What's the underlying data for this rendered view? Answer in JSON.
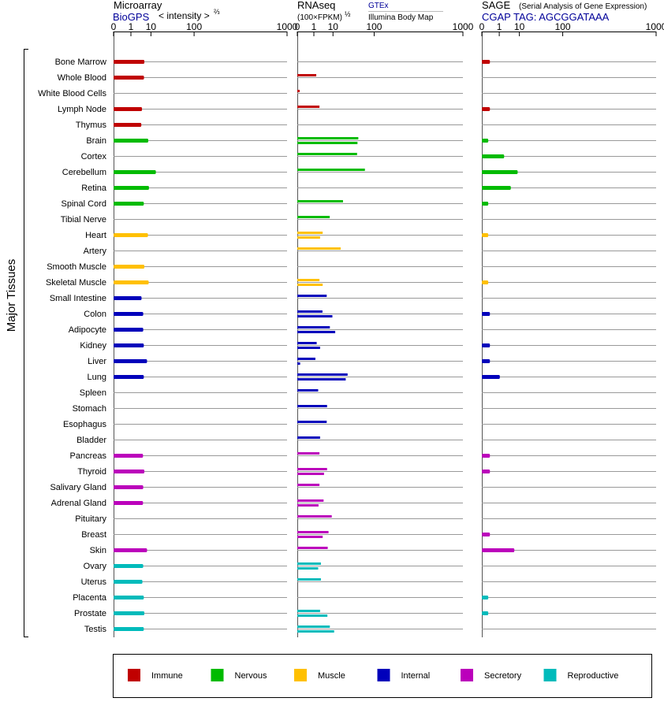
{
  "colors": {
    "Immune": "#c00000",
    "Nervous": "#00bb00",
    "Muscle": "#ffc000",
    "Internal": "#0000bb",
    "Secretory": "#bb00bb",
    "Reproductive": "#00bbbb",
    "label_blue": "#000099",
    "grid": "#999999"
  },
  "header": {
    "microarray_title": "Microarray",
    "microarray_source": "BioGPS",
    "microarray_unit": "< intensity >",
    "microarray_exp": "⅔",
    "rnaseq_title": "RNAseq",
    "rnaseq_unit": "(100×FPKM)",
    "rnaseq_exp": "½",
    "rnaseq_src1": "GTEx",
    "rnaseq_src2": "Illumina Body Map",
    "sage_title": "SAGE",
    "sage_sub": "(Serial Analysis of Gene Expression)",
    "sage_tag": "CGAP TAG: AGCGGATAAA"
  },
  "axis_ticks": [
    "0",
    "1",
    "10",
    "100",
    "1000"
  ],
  "y_group_label": "Major Tissues",
  "legend": [
    {
      "label": "Immune",
      "color": "#c00000"
    },
    {
      "label": "Nervous",
      "color": "#00bb00"
    },
    {
      "label": "Muscle",
      "color": "#ffc000"
    },
    {
      "label": "Internal",
      "color": "#0000bb"
    },
    {
      "label": "Secretory",
      "color": "#bb00bb"
    },
    {
      "label": "Reproductive",
      "color": "#00bbbb"
    }
  ],
  "chart_data": {
    "type": "bar",
    "xscale": "power",
    "xlim": [
      0,
      1000
    ],
    "panels": [
      "Microarray",
      "RNAseq",
      "SAGE"
    ],
    "tissues": [
      {
        "name": "Bone Marrow",
        "system": "Immune",
        "microarray": [
          5.6
        ],
        "rnaseq": [],
        "sage": [
          0.1
        ]
      },
      {
        "name": "Whole Blood",
        "system": "Immune",
        "microarray": [
          5.4
        ],
        "rnaseq": [
          1.5
        ],
        "sage": []
      },
      {
        "name": "White Blood Cells",
        "system": "Immune",
        "microarray": [],
        "rnaseq": [
          0.003
        ],
        "sage": []
      },
      {
        "name": "Lymph Node",
        "system": "Immune",
        "microarray": [
          4.4
        ],
        "rnaseq": [
          2.4
        ],
        "sage": [
          0.1
        ]
      },
      {
        "name": "Thymus",
        "system": "Immune",
        "microarray": [
          4.1
        ],
        "rnaseq": [],
        "sage": []
      },
      {
        "name": "Brain",
        "system": "Nervous",
        "microarray": [
          8.0
        ],
        "rnaseq": [
          50,
          48
        ],
        "sage": [
          0.05
        ]
      },
      {
        "name": "Cortex",
        "system": "Nervous",
        "microarray": [],
        "rnaseq": [
          47
        ],
        "sage": [
          2.1
        ]
      },
      {
        "name": "Cerebellum",
        "system": "Nervous",
        "microarray": [
          14.5
        ],
        "rnaseq": [
          68
        ],
        "sage": [
          8.7
        ]
      },
      {
        "name": "Retina",
        "system": "Nervous",
        "microarray": [
          8.5
        ],
        "rnaseq": [],
        "sage": [
          4.6
        ]
      },
      {
        "name": "Spinal Cord",
        "system": "Nervous",
        "microarray": [
          5.3
        ],
        "rnaseq": [
          21
        ],
        "sage": [
          0.05
        ]
      },
      {
        "name": "Tibial Nerve",
        "system": "Nervous",
        "microarray": [],
        "rnaseq": [
          7.5
        ],
        "sage": []
      },
      {
        "name": "Heart",
        "system": "Muscle",
        "microarray": [
          7.8
        ],
        "rnaseq": [
          3.6,
          2.6
        ],
        "sage": [
          0.05
        ]
      },
      {
        "name": "Artery",
        "system": "Muscle",
        "microarray": [],
        "rnaseq": [
          18
        ],
        "sage": []
      },
      {
        "name": "Smooth Muscle",
        "system": "Muscle",
        "microarray": [
          5.6
        ],
        "rnaseq": [],
        "sage": []
      },
      {
        "name": "Skeletal Muscle",
        "system": "Muscle",
        "microarray": [
          8.3
        ],
        "rnaseq": [
          2.4,
          3.6
        ],
        "sage": [
          0.05
        ]
      },
      {
        "name": "Small Intestine",
        "system": "Internal",
        "microarray": [
          4.2
        ],
        "rnaseq": [
          5.6
        ],
        "sage": []
      },
      {
        "name": "Colon",
        "system": "Internal",
        "microarray": [
          5.0
        ],
        "rnaseq": [
          3.5,
          9.5
        ],
        "sage": [
          0.1
        ]
      },
      {
        "name": "Adipocyte",
        "system": "Internal",
        "microarray": [
          5.0
        ],
        "rnaseq": [
          7.6,
          12
        ],
        "sage": []
      },
      {
        "name": "Kidney",
        "system": "Internal",
        "microarray": [
          5.3
        ],
        "rnaseq": [
          1.6,
          2.6
        ],
        "sage": [
          0.1
        ]
      },
      {
        "name": "Liver",
        "system": "Internal",
        "microarray": [
          7.2
        ],
        "rnaseq": [
          1.3,
          0.005
        ],
        "sage": [
          0.1
        ]
      },
      {
        "name": "Lung",
        "system": "Internal",
        "microarray": [
          5.3
        ],
        "rnaseq": [
          28,
          25
        ],
        "sage": [
          1.1
        ]
      },
      {
        "name": "Spleen",
        "system": "Internal",
        "microarray": [],
        "rnaseq": [
          2.0
        ],
        "sage": []
      },
      {
        "name": "Stomach",
        "system": "Internal",
        "microarray": [],
        "rnaseq": [
          5.8
        ],
        "sage": []
      },
      {
        "name": "Esophagus",
        "system": "Internal",
        "microarray": [],
        "rnaseq": [
          5.6
        ],
        "sage": []
      },
      {
        "name": "Bladder",
        "system": "Internal",
        "microarray": [],
        "rnaseq": [
          2.6
        ],
        "sage": []
      },
      {
        "name": "Pancreas",
        "system": "Secretory",
        "microarray": [
          4.9
        ],
        "rnaseq": [
          2.4
        ],
        "sage": [
          0.1
        ]
      },
      {
        "name": "Thyroid",
        "system": "Secretory",
        "microarray": [
          5.6
        ],
        "rnaseq": [
          5.8,
          4.2
        ],
        "sage": [
          0.1
        ]
      },
      {
        "name": "Salivary Gland",
        "system": "Secretory",
        "microarray": [
          5.0
        ],
        "rnaseq": [
          2.4
        ],
        "sage": []
      },
      {
        "name": "Adrenal Gland",
        "system": "Secretory",
        "microarray": [
          4.9
        ],
        "rnaseq": [
          4.0,
          2.1
        ],
        "sage": []
      },
      {
        "name": "Pituitary",
        "system": "Secretory",
        "microarray": [],
        "rnaseq": [
          9.0
        ],
        "sage": []
      },
      {
        "name": "Breast",
        "system": "Secretory",
        "microarray": [],
        "rnaseq": [
          6.7,
          3.6
        ],
        "sage": [
          0.1
        ]
      },
      {
        "name": "Skin",
        "system": "Secretory",
        "microarray": [
          7.2
        ],
        "rnaseq": [
          6.2
        ],
        "sage": [
          6.5
        ]
      },
      {
        "name": "Ovary",
        "system": "Reproductive",
        "microarray": [
          5.0
        ],
        "rnaseq": [
          2.9,
          2.0
        ],
        "sage": []
      },
      {
        "name": "Uterus",
        "system": "Reproductive",
        "microarray": [
          4.6
        ],
        "rnaseq": [
          2.9
        ],
        "sage": []
      },
      {
        "name": "Placenta",
        "system": "Reproductive",
        "microarray": [
          5.3
        ],
        "rnaseq": [],
        "sage": [
          0.05
        ]
      },
      {
        "name": "Prostate",
        "system": "Reproductive",
        "microarray": [
          5.6
        ],
        "rnaseq": [
          2.6,
          6.0
        ],
        "sage": [
          0.05
        ]
      },
      {
        "name": "Testis",
        "system": "Reproductive",
        "microarray": [
          5.3
        ],
        "rnaseq": [
          7.6,
          11
        ],
        "sage": []
      }
    ]
  }
}
